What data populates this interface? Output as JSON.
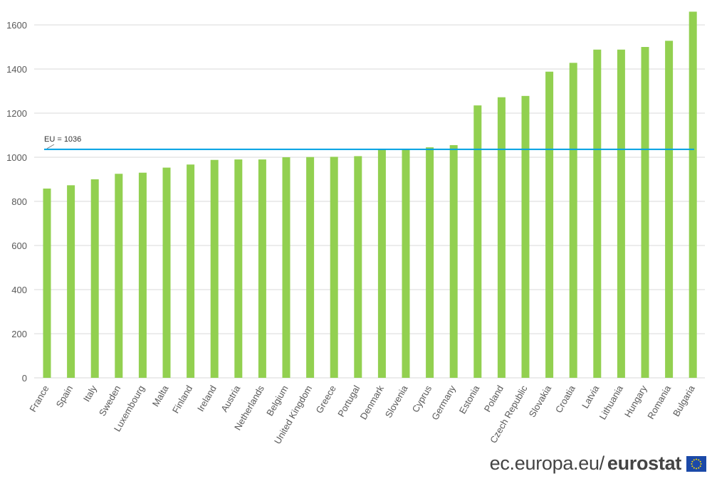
{
  "chart_data": {
    "type": "bar",
    "title": "",
    "xlabel": "",
    "ylabel": "",
    "ylim": [
      0,
      1700
    ],
    "yticks": [
      0,
      200,
      400,
      600,
      800,
      1000,
      1200,
      1400,
      1600
    ],
    "grid": true,
    "categories": [
      "France",
      "Spain",
      "Italy",
      "Sweden",
      "Luxembourg",
      "Malta",
      "Finland",
      "Ireland",
      "Austria",
      "Netherlands",
      "Belgium",
      "United Kingdom",
      "Greece",
      "Portugal",
      "Denmark",
      "Slovenia",
      "Cyprus",
      "Germany",
      "Estonia",
      "Poland",
      "Czech Republic",
      "Slovakia",
      "Croatia",
      "Latvia",
      "Lithuania",
      "Hungary",
      "Romania",
      "Bulgaria"
    ],
    "values": [
      858,
      873,
      900,
      925,
      930,
      953,
      967,
      988,
      990,
      990,
      1000,
      1001,
      1002,
      1005,
      1035,
      1038,
      1045,
      1055,
      1235,
      1272,
      1278,
      1388,
      1428,
      1488,
      1488,
      1500,
      1528,
      1660
    ],
    "reference_line": {
      "label": "EU = 1036",
      "value": 1036
    },
    "colors": {
      "bar": "#92d050",
      "reference": "#00a0e3",
      "grid": "#d9d9d9"
    }
  },
  "footer": {
    "site": "ec.europa.eu/",
    "brand": "eurostat",
    "flag_icon": "eu-flag-icon"
  }
}
